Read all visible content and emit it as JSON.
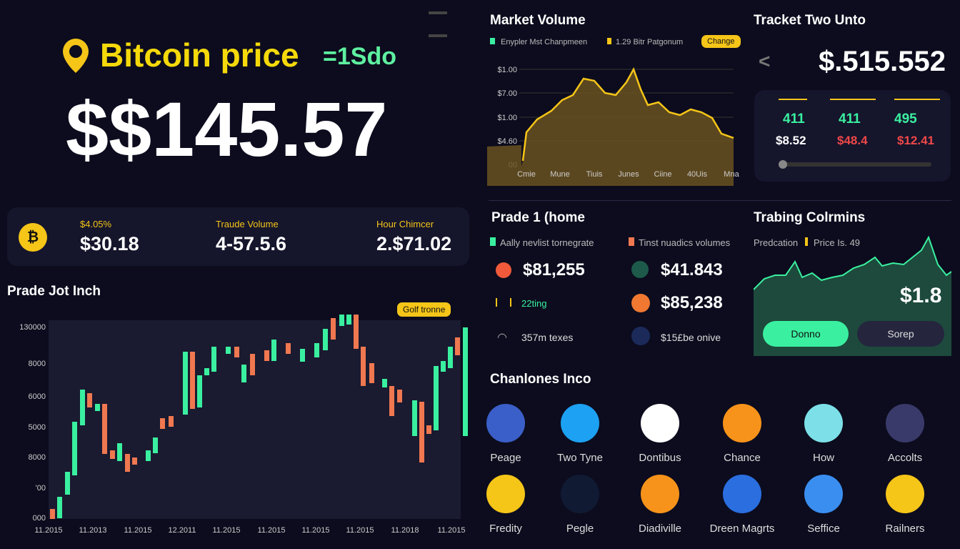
{
  "header": {
    "title": "Bitcoin price",
    "unit": "=1Sdo",
    "price": "$$145.57"
  },
  "stats": [
    {
      "label": "$4.05%",
      "value": "$30.18"
    },
    {
      "label": "Traude Volume",
      "value": "4-57.5.6"
    },
    {
      "label": "Hour Chimcer",
      "value": "2.$71.02"
    }
  ],
  "candles": {
    "title": "Prade Jot Inch",
    "badge": "Golf tronne",
    "y_labels": [
      "130000",
      "8000",
      "6000",
      "5000",
      "8000",
      "'00",
      "000"
    ],
    "x_labels": [
      "11.2015",
      "11.2013",
      "11.2015",
      "12.2011",
      "11.2015",
      "11.2015",
      "11.2015",
      "11.2015",
      "11.2018",
      "11.2015"
    ]
  },
  "market_volume": {
    "title": "Market Volume",
    "legend": [
      "Enypler Mst Chanpmeen",
      "1.29 Bitr Patgonum"
    ],
    "badge": "Change",
    "y_labels": [
      "$1.00",
      "$7.00",
      "$1.00",
      "$4.60",
      "00"
    ],
    "x_labels": [
      "Cmie",
      "Mune",
      "Tiuis",
      "Junes",
      "Ciine",
      "40Uis",
      "Mna"
    ]
  },
  "tracker": {
    "title": "Tracket Two Unto",
    "back": "<",
    "price": "$.515.552",
    "counts": [
      "411",
      "411",
      "495"
    ],
    "amounts": [
      "$8.52",
      "$48.4",
      "$12.41"
    ]
  },
  "trade_home": {
    "title": "Prade 1 (home",
    "legend": [
      "Aally nevlist tornegrate",
      "Tinst nuadics volumes"
    ],
    "items": [
      "$81,255",
      "$41.843",
      "22ting",
      "$85,238",
      "357m texes",
      "$15£be onive"
    ]
  },
  "trading_columns": {
    "title": "Trabing Colrmins",
    "legend": [
      "Predcation",
      "Price Is. 49"
    ],
    "value": "$1.8",
    "buttons": [
      "Donno",
      "Sorep"
    ]
  },
  "channels": {
    "title": "Chanlones Inco",
    "items": [
      "Peage",
      "Two Tyne",
      "Dontibus",
      "Chance",
      "How",
      "Accolts",
      "Fredity",
      "Pegle",
      "Diadiville",
      "Dreen Magrts",
      "Seffice",
      "Railners"
    ]
  }
}
